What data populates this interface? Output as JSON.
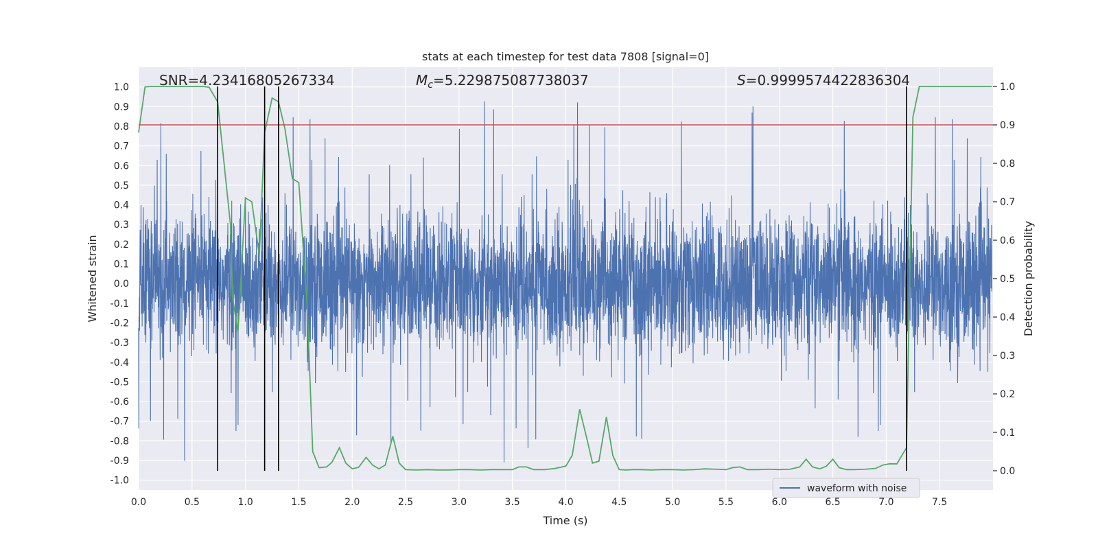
{
  "chart_data": {
    "type": "line",
    "title": "stats at each timestep for test data 7808 [signal=0]",
    "xlabel": "Time (s)",
    "ylabel_left": "Whitened strain",
    "ylabel_right": "Detection probability",
    "xlim": [
      0,
      8
    ],
    "ylim_left": [
      -1.05,
      1.1
    ],
    "ylim_right": [
      -0.05,
      1.05
    ],
    "x_ticks": [
      0.0,
      0.5,
      1.0,
      1.5,
      2.0,
      2.5,
      3.0,
      3.5,
      4.0,
      4.5,
      5.0,
      5.5,
      6.0,
      6.5,
      7.0,
      7.5
    ],
    "x_tick_labels": [
      "0.0",
      "0.5",
      "1.0",
      "1.5",
      "2.0",
      "2.5",
      "3.0",
      "3.5",
      "4.0",
      "4.5",
      "5.0",
      "5.5",
      "6.0",
      "6.5",
      "7.0",
      "7.5"
    ],
    "y_ticks_left": [
      1.0,
      0.9,
      0.8,
      0.7,
      0.6,
      0.5,
      0.4,
      0.3,
      0.2,
      0.1,
      0.0,
      -0.1,
      -0.2,
      -0.3,
      -0.4,
      -0.5,
      -0.6,
      -0.7,
      -0.8,
      -0.9,
      -1.0
    ],
    "y_tick_labels_left": [
      "1.0",
      "0.9",
      "0.8",
      "0.7",
      "0.6",
      "0.5",
      "0.4",
      "0.3",
      "0.2",
      "0.1",
      "0.0",
      "-0.1",
      "-0.2",
      "-0.3",
      "-0.4",
      "-0.5",
      "-0.6",
      "-0.7",
      "-0.8",
      "-0.9",
      "-1.0"
    ],
    "y_ticks_right": [
      1.0,
      0.9,
      0.8,
      0.7,
      0.6,
      0.5,
      0.4,
      0.3,
      0.2,
      0.1,
      0.0
    ],
    "y_tick_labels_right": [
      "1.0",
      "0.9",
      "0.8",
      "0.7",
      "0.6",
      "0.5",
      "0.4",
      "0.3",
      "0.2",
      "0.1",
      "0.0"
    ],
    "annotations": {
      "snr": "SNR=4.23416805267334",
      "mc_symbol": "M",
      "mc_sub": "c",
      "mc_value": "=5.229875087738037",
      "s_symbol": "S",
      "s_value": "=0.9999574422836304"
    },
    "threshold": {
      "axis": "right",
      "value": 0.9,
      "color": "#c44e52"
    },
    "vertical_markers": [
      0.74,
      1.18,
      1.31,
      7.19
    ],
    "legend": {
      "label": "waveform with noise",
      "placement": "lower-right"
    },
    "series": [
      {
        "name": "waveform with noise",
        "axis": "left",
        "color": "#4c72b0",
        "kind": "noise-waveform",
        "approx_amplitude": 0.4,
        "peak_range": [
          -0.97,
          1.0
        ]
      },
      {
        "name": "detection probability",
        "axis": "right",
        "color": "#55a868",
        "x": [
          0.0,
          0.06,
          0.12,
          0.2,
          0.3,
          0.4,
          0.5,
          0.6,
          0.66,
          0.74,
          0.8,
          0.86,
          0.88,
          0.93,
          1.0,
          1.06,
          1.13,
          1.18,
          1.25,
          1.31,
          1.37,
          1.44,
          1.5,
          1.58,
          1.63,
          1.69,
          1.76,
          1.81,
          1.88,
          1.94,
          2.0,
          2.06,
          2.13,
          2.19,
          2.25,
          2.31,
          2.38,
          2.44,
          2.5,
          2.6,
          2.7,
          2.8,
          2.9,
          3.0,
          3.1,
          3.2,
          3.3,
          3.4,
          3.5,
          3.56,
          3.63,
          3.7,
          3.8,
          3.9,
          4.0,
          4.06,
          4.13,
          4.2,
          4.25,
          4.31,
          4.38,
          4.44,
          4.5,
          4.56,
          4.63,
          4.7,
          4.8,
          4.9,
          5.0,
          5.1,
          5.2,
          5.3,
          5.4,
          5.5,
          5.56,
          5.63,
          5.7,
          5.8,
          5.9,
          6.0,
          6.1,
          6.19,
          6.25,
          6.31,
          6.38,
          6.44,
          6.5,
          6.56,
          6.63,
          6.7,
          6.8,
          6.9,
          6.97,
          7.03,
          7.1,
          7.19,
          7.25,
          7.31,
          7.38,
          7.5,
          7.6,
          7.7,
          7.8,
          7.9,
          7.99
        ],
        "values": [
          0.88,
          0.999,
          1.0,
          1.0,
          1.0,
          1.0,
          1.0,
          1.0,
          0.998,
          0.96,
          0.8,
          0.64,
          0.45,
          0.36,
          0.71,
          0.7,
          0.56,
          0.88,
          0.97,
          0.96,
          0.89,
          0.76,
          0.75,
          0.42,
          0.05,
          0.008,
          0.01,
          0.022,
          0.06,
          0.02,
          0.005,
          0.009,
          0.035,
          0.015,
          0.005,
          0.015,
          0.09,
          0.02,
          0.003,
          0.002,
          0.003,
          0.002,
          0.002,
          0.003,
          0.003,
          0.002,
          0.003,
          0.003,
          0.003,
          0.01,
          0.01,
          0.003,
          0.003,
          0.006,
          0.012,
          0.04,
          0.16,
          0.08,
          0.02,
          0.025,
          0.14,
          0.04,
          0.003,
          0.002,
          0.003,
          0.003,
          0.002,
          0.003,
          0.003,
          0.002,
          0.003,
          0.005,
          0.004,
          0.003,
          0.008,
          0.01,
          0.003,
          0.003,
          0.004,
          0.003,
          0.004,
          0.01,
          0.03,
          0.01,
          0.005,
          0.012,
          0.03,
          0.008,
          0.003,
          0.003,
          0.004,
          0.006,
          0.015,
          0.018,
          0.018,
          0.06,
          0.92,
          1.0,
          1.0,
          1.0,
          1.0,
          1.0,
          1.0,
          1.0,
          1.0
        ]
      }
    ]
  }
}
